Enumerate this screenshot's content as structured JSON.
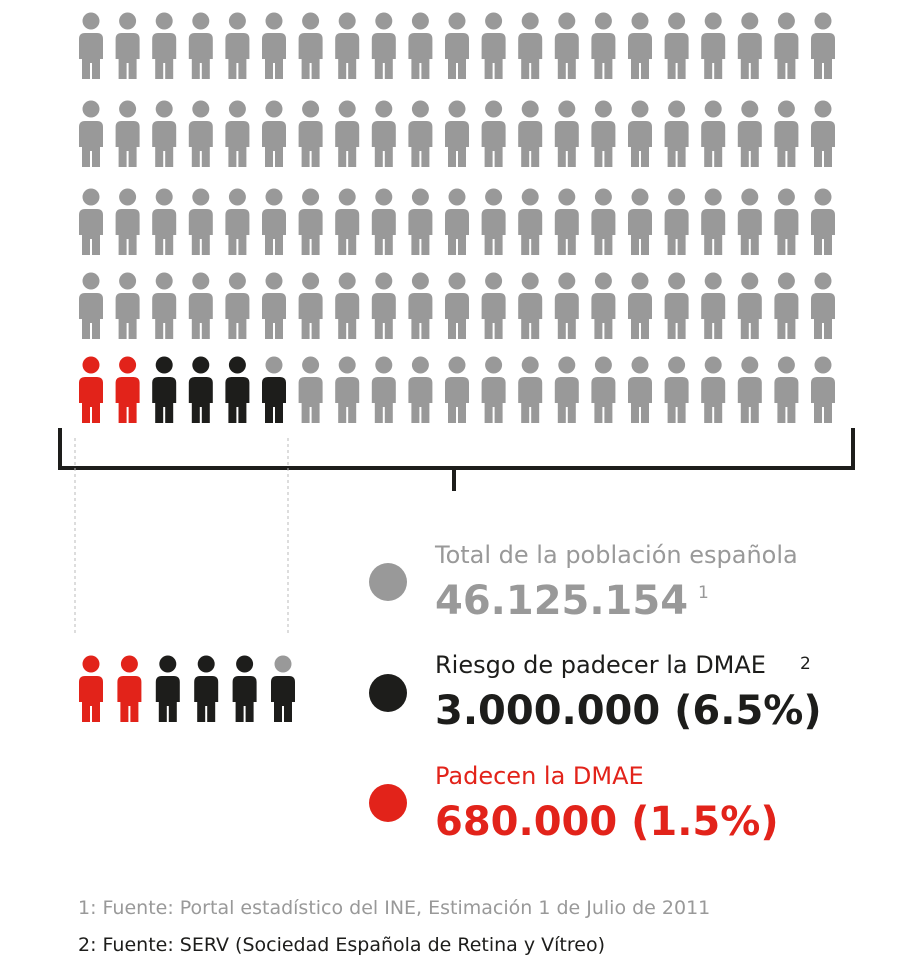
{
  "legend": [
    {
      "label": "Total de la población española",
      "note": "1",
      "value": "46.125.154"
    },
    {
      "label": "Riesgo de padecer la DMAE",
      "note": "2",
      "value": "3.000.000 (6.5%)"
    },
    {
      "label": "Padecen la DMAE",
      "value": "680.000 (1.5%)"
    }
  ],
  "footnotes": [
    "1: Fuente: Portal estadístico del INE, Estimación 1 de Julio de 2011",
    "2: Fuente: SERV (Sociedad Española de Retina y Vítreo)"
  ]
}
